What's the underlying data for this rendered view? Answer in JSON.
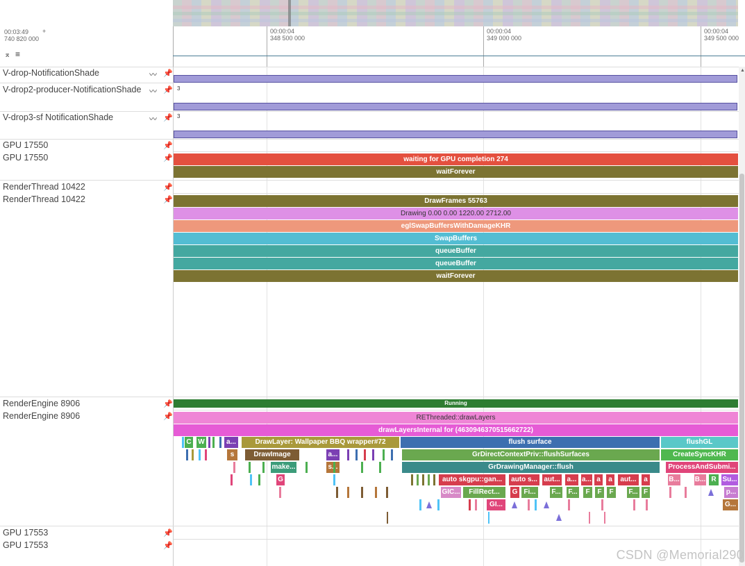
{
  "overview": {
    "label": "overview-strip"
  },
  "header": {
    "left_time": "00:03:49",
    "left_offset": "740 820 000",
    "plus": "+",
    "ticks": [
      {
        "top": "00:00:04",
        "bottom": "348 500 000"
      },
      {
        "top": "00:00:04",
        "bottom": "349 000 000"
      },
      {
        "top": "00:00:04",
        "bottom": "349 500 000"
      }
    ],
    "collapse_glyph": "⌅",
    "list_glyph": "≡"
  },
  "tracks": {
    "vdrop_label": "V-drop-NotificationShade",
    "vdrop2_label": "V-drop2-producer-NotificationShade",
    "vdrop2_value": "3",
    "vdrop3_label": "V-drop3-sf NotificationShade",
    "vdrop3_value": "3",
    "gpu1_label_a": "GPU 17550",
    "gpu1_label_b": "GPU 17550",
    "render_label_a": "RenderThread 10422",
    "render_label_b": "RenderThread 10422",
    "re_label_a": "RenderEngine 8906",
    "re_label_b": "RenderEngine 8906",
    "gpu2_label_a": "GPU 17553",
    "gpu2_label_b": "GPU 17553"
  },
  "slices": {
    "gpu_wait": "waiting for GPU completion 274",
    "gpu_forever": "waitForever",
    "drawframes": "DrawFrames 55763",
    "drawing": "Drawing  0.00  0.00 1220.00 2712.00",
    "eglswap": "eglSwapBuffersWithDamageKHR",
    "swapbuffers": "SwapBuffers",
    "queue1": "queueBuffer",
    "queue2": "queueBuffer",
    "rt_forever": "waitForever",
    "running": "Running",
    "rethreaded": "REThreaded::drawLayers",
    "drawlayersinternal": "drawLayersInternal for  (4630946370515662722)",
    "l3": [
      {
        "t": "C",
        "c": "#4caf50"
      },
      {
        "t": "W",
        "c": "#4caf50"
      },
      {
        "t": "a...",
        "c": "#7b3fb3"
      },
      {
        "t": "DrawLayer: Wallpaper BBQ wrapper#72",
        "c": "#a9993a"
      },
      {
        "t": "flush surface",
        "c": "#3d6fb0"
      },
      {
        "t": "flushGL",
        "c": "#5ac8c8"
      }
    ],
    "l4": [
      {
        "t": "s",
        "c": "#b5763a"
      },
      {
        "t": "DrawImage",
        "c": "#7d5c34"
      },
      {
        "t": "a...",
        "c": "#7b3fb3"
      },
      {
        "t": "GrDirectContextPriv::flushSurfaces",
        "c": "#6aa84f"
      },
      {
        "t": "CreateSyncKHR",
        "c": "#4fb84f"
      }
    ],
    "l5": [
      {
        "t": "make...",
        "c": "#3c9c7a"
      },
      {
        "t": "s...",
        "c": "#b5763a"
      },
      {
        "t": "GrDrawingManager::flush",
        "c": "#3a8a8a"
      },
      {
        "t": "ProcessAndSubmi...",
        "c": "#e0457a"
      }
    ],
    "l6": [
      {
        "t": "G",
        "c": "#e0457a"
      },
      {
        "t": "auto skgpu::gan...",
        "c": "#d63d4d"
      },
      {
        "t": "auto s...",
        "c": "#d63d4d"
      },
      {
        "t": "aut...",
        "c": "#d63d4d"
      },
      {
        "t": "a...",
        "c": "#d63d4d"
      },
      {
        "t": "a...",
        "c": "#d63d4d"
      },
      {
        "t": "a",
        "c": "#d63d4d"
      },
      {
        "t": "a",
        "c": "#d63d4d"
      },
      {
        "t": "aut...",
        "c": "#d63d4d"
      },
      {
        "t": "a",
        "c": "#d63d4d"
      },
      {
        "t": "B...",
        "c": "#e87c9c"
      },
      {
        "t": "B...",
        "c": "#e87c9c"
      },
      {
        "t": "R",
        "c": "#4caf50"
      },
      {
        "t": "Su...",
        "c": "#b15ce0"
      }
    ],
    "l7": [
      {
        "t": "GIC...",
        "c": "#d78ac7"
      },
      {
        "t": "FillRect...",
        "c": "#6aa84f"
      },
      {
        "t": "G",
        "c": "#d63d4d"
      },
      {
        "t": "Fi...",
        "c": "#6aa84f"
      },
      {
        "t": "F...",
        "c": "#6aa84f"
      },
      {
        "t": "F...",
        "c": "#6aa84f"
      },
      {
        "t": "F",
        "c": "#6aa84f"
      },
      {
        "t": "F",
        "c": "#6aa84f"
      },
      {
        "t": "F",
        "c": "#6aa84f"
      },
      {
        "t": "F...",
        "c": "#6aa84f"
      },
      {
        "t": "F",
        "c": "#6aa84f"
      },
      {
        "t": "p...",
        "c": "#c77dd1"
      }
    ],
    "l8": [
      {
        "t": "GI...",
        "c": "#e0457a"
      },
      {
        "t": "G...",
        "c": "#b5763a"
      }
    ]
  },
  "colors": {
    "accent": "#4a7d95",
    "counter": "#a19bd8",
    "red": "#e4503f",
    "olive": "#7c7332"
  },
  "watermark": "CSDN @Memorial290"
}
